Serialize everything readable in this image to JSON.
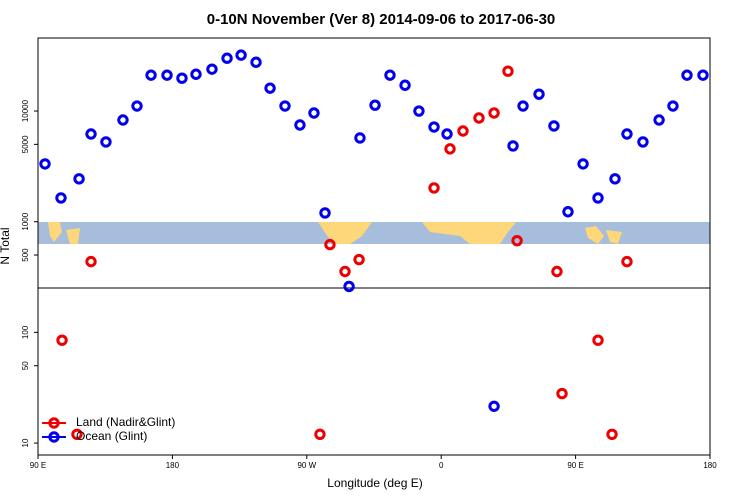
{
  "chart_data": {
    "type": "scatter",
    "title": "0-10N November (Ver 8)   2014-09-06 to 2017-06-30",
    "x_label": "Longitude (deg E)",
    "y_label": "N Total",
    "xlim": [
      90,
      540
    ],
    "ylim": [
      7.8,
      45700
    ],
    "log_y": true,
    "xticks": [
      {
        "value": 90,
        "label": "90 E"
      },
      180,
      {
        "value": 270,
        "label": "90 W"
      },
      {
        "value": 360,
        "label": "0"
      },
      {
        "value": 450,
        "label": "90 E"
      },
      {
        "value": 540,
        "label": "180"
      }
    ],
    "yticks": [
      10,
      50,
      100,
      500,
      1000,
      5000,
      10000
    ],
    "legend": "bottom-left",
    "series": [
      {
        "name": "Land (Nadir&Glint)",
        "color": "#ee0000",
        "x": [
          106.1,
          116.1,
          125.5,
          278.8,
          285.5,
          295.6,
          305,
          355.2,
          365.9,
          374.6,
          385.3,
          395.4,
          404.7,
          410.8,
          437.5,
          440.9,
          465,
          474.4,
          484.4
        ],
        "values": [
          85,
          12,
          436,
          12,
          621,
          355,
          455,
          2020,
          4550,
          6600,
          8650,
          9600,
          22900,
          674,
          355,
          28,
          85,
          12,
          436
        ]
      },
      {
        "name": "Ocean (Glint)",
        "color": "#0000ee",
        "x": [
          94.7,
          105.4,
          117.5,
          125.5,
          135.5,
          146.9,
          156.3,
          165.7,
          176.4,
          186.4,
          195.8,
          206.5,
          216.6,
          226,
          236,
          245.4,
          255.4,
          265.4,
          274.8,
          282.2,
          298.3,
          305.6,
          315.7,
          325.7,
          335.8,
          345.1,
          355.2,
          363.9,
          395.4,
          408.1,
          414.8,
          425.5,
          435.5,
          444.9,
          455,
          465,
          476.4,
          484.4,
          495.1,
          505.9,
          515.2,
          524.6,
          535.3
        ],
        "values": [
          3330,
          1640,
          2440,
          6200,
          5260,
          8300,
          11100,
          21100,
          21100,
          19800,
          21500,
          23900,
          30000,
          32000,
          27600,
          16100,
          11100,
          7480,
          9600,
          1200,
          260,
          5710,
          11300,
          21100,
          17100,
          10000,
          7170,
          6200,
          21.5,
          4840,
          11100,
          14200,
          7330,
          1230,
          3330,
          1640,
          2440,
          6200,
          5260,
          8300,
          11100,
          21100,
          21100
        ]
      }
    ]
  }
}
